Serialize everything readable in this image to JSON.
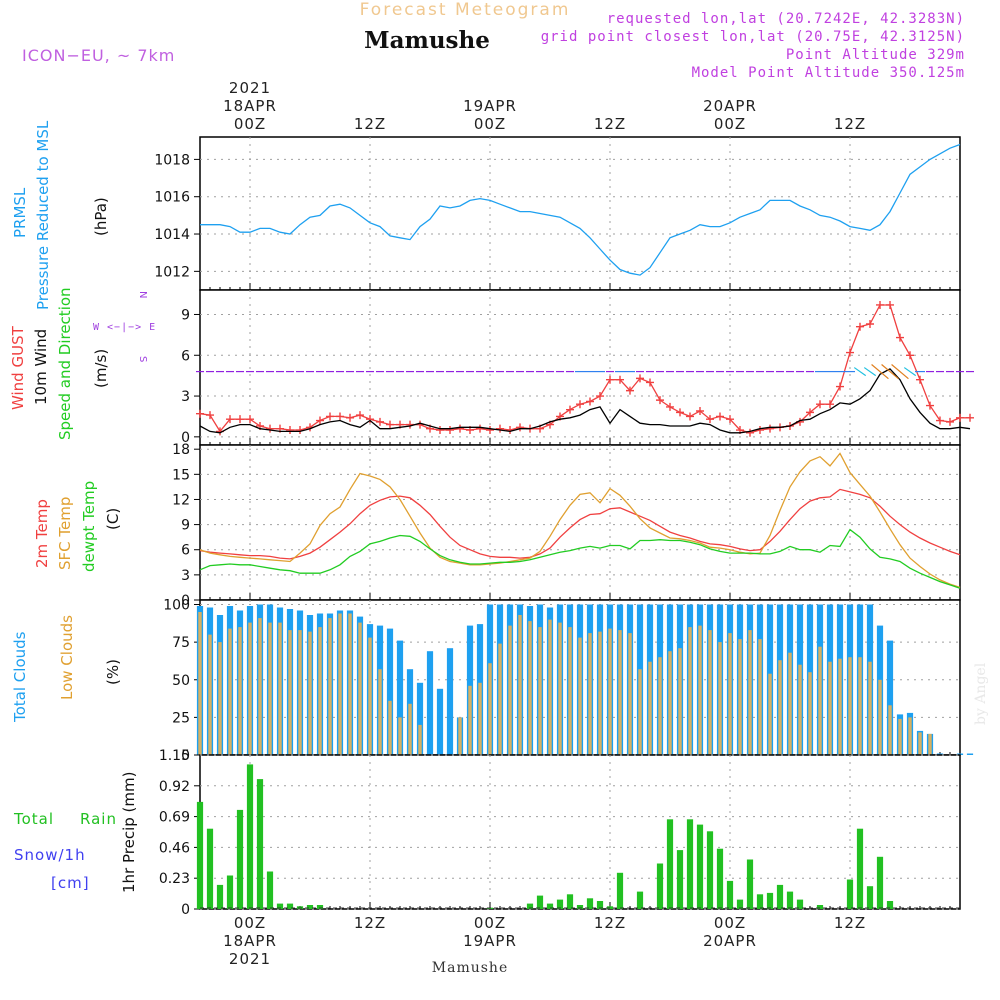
{
  "header": {
    "product_title": "Forecast Meteogram",
    "location_name": "Mamushe",
    "model": "ICON−EU, ~ 7km",
    "requested": "requested lon,lat (20.7242E, 42.3283N)",
    "grid_point": "grid point closest lon,lat (20.75E, 42.3125N)",
    "point_altitude": "Point Altitude 329m",
    "model_altitude": "Model Point Altitude 350.125m",
    "watermark": "by Angel",
    "footer_location": "Mamushe"
  },
  "colors": {
    "pressure": "#1ea0f0",
    "gust": "#f04040",
    "wind": "#000000",
    "direction": "#22cc22",
    "compass": "#a040e0",
    "temp2m": "#f04040",
    "sfc": "#e0a030",
    "dewpt": "#22cc22",
    "total_clouds": "#1ea0f0",
    "low_clouds": "#d8b060",
    "rain": "#22c022",
    "snow": "#4040f0",
    "header_gold": "#f0c890",
    "header_purple": "#c040e0"
  },
  "time_axis": {
    "top_labels": [
      {
        "hour": 0,
        "lines": [
          "2021",
          "18APR",
          "00Z"
        ]
      },
      {
        "hour": 12,
        "lines": [
          "12Z"
        ]
      },
      {
        "hour": 24,
        "lines": [
          "19APR",
          "00Z"
        ]
      },
      {
        "hour": 36,
        "lines": [
          "12Z"
        ]
      },
      {
        "hour": 48,
        "lines": [
          "20APR",
          "00Z"
        ]
      },
      {
        "hour": 60,
        "lines": [
          "12Z"
        ]
      }
    ],
    "bottom_labels": [
      {
        "hour": 0,
        "lines": [
          "00Z",
          "18APR",
          "2021"
        ]
      },
      {
        "hour": 12,
        "lines": [
          "12Z"
        ]
      },
      {
        "hour": 24,
        "lines": [
          "00Z",
          "19APR"
        ]
      },
      {
        "hour": 36,
        "lines": [
          "12Z"
        ]
      },
      {
        "hour": 48,
        "lines": [
          "00Z",
          "20APR"
        ]
      },
      {
        "hour": 60,
        "lines": [
          "12Z"
        ]
      }
    ],
    "start_hour": -5,
    "end_hour": 71
  },
  "chart_data": [
    {
      "type": "line",
      "id": "pressure",
      "title": "PRMSL Pressure Reduced to MSL",
      "label_lines": [
        "PRMSL",
        "Pressure Reduced to MSL"
      ],
      "ylabel": "(hPa)",
      "ylim": [
        1011,
        1019.2
      ],
      "yticks": [
        1012,
        1014,
        1016,
        1018
      ],
      "x_start": -5,
      "x_step": 1,
      "series": [
        {
          "name": "PRMSL",
          "color_key": "pressure",
          "values": [
            1014.5,
            1014.5,
            1014.5,
            1014.4,
            1014.1,
            1014.1,
            1014.3,
            1014.3,
            1014.1,
            1014.0,
            1014.5,
            1014.9,
            1015.0,
            1015.5,
            1015.6,
            1015.4,
            1015.0,
            1014.6,
            1014.4,
            1013.9,
            1013.8,
            1013.7,
            1014.4,
            1014.8,
            1015.5,
            1015.4,
            1015.5,
            1015.8,
            1015.9,
            1015.8,
            1015.6,
            1015.4,
            1015.2,
            1015.2,
            1015.1,
            1015.0,
            1014.9,
            1014.6,
            1014.3,
            1013.8,
            1013.2,
            1012.6,
            1012.1,
            1011.9,
            1011.8,
            1012.2,
            1013.0,
            1013.8,
            1014.0,
            1014.2,
            1014.5,
            1014.4,
            1014.4,
            1014.6,
            1014.9,
            1015.1,
            1015.3,
            1015.8,
            1015.8,
            1015.8,
            1015.5,
            1015.3,
            1015.0,
            1014.9,
            1014.7,
            1014.4,
            1014.3,
            1014.2,
            1014.5,
            1015.2,
            1016.2,
            1017.2,
            1017.6,
            1018.0,
            1018.3,
            1018.6,
            1018.8
          ]
        }
      ]
    },
    {
      "type": "line",
      "id": "wind",
      "title": "Wind GUST, 10m Wind Speed and Direction",
      "label_gust": "Wind GUST",
      "label_wind": "10m Wind",
      "label_dir": "Speed and Direction",
      "ylabel": "(m/s)",
      "compass": [
        "N",
        "W <−|−> E",
        "S"
      ],
      "ylim": [
        -0.6,
        10.8
      ],
      "yticks": [
        0,
        3,
        6,
        9
      ],
      "x_start": -5,
      "x_step": 1,
      "series": [
        {
          "name": "Wind GUST",
          "color_key": "gust",
          "markers": "plus",
          "values": [
            1.7,
            1.6,
            0.4,
            1.3,
            1.3,
            1.3,
            0.8,
            0.6,
            0.6,
            0.5,
            0.5,
            0.7,
            1.2,
            1.5,
            1.5,
            1.4,
            1.6,
            1.3,
            1.1,
            0.9,
            0.9,
            0.9,
            0.9,
            0.6,
            0.5,
            0.5,
            0.6,
            0.5,
            0.6,
            0.5,
            0.6,
            0.5,
            0.7,
            0.6,
            0.6,
            0.9,
            1.5,
            2.0,
            2.4,
            2.6,
            3.0,
            4.2,
            4.2,
            3.4,
            4.3,
            4.0,
            2.7,
            2.2,
            1.8,
            1.5,
            1.9,
            1.3,
            1.5,
            1.3,
            0.5,
            0.3,
            0.5,
            0.6,
            0.7,
            0.8,
            1.1,
            1.8,
            2.4,
            2.4,
            3.7,
            6.2,
            8.1,
            8.3,
            9.7,
            9.7,
            7.3,
            6.0,
            4.2,
            2.3,
            1.2,
            1.1,
            1.4,
            1.4
          ]
        },
        {
          "name": "10m Wind",
          "color_key": "wind",
          "values": [
            0.8,
            0.4,
            0.3,
            0.7,
            0.9,
            0.9,
            0.6,
            0.5,
            0.4,
            0.4,
            0.4,
            0.6,
            0.9,
            1.1,
            1.2,
            0.9,
            0.7,
            1.2,
            0.6,
            0.6,
            0.7,
            0.8,
            1.0,
            0.8,
            0.6,
            0.6,
            0.7,
            0.7,
            0.7,
            0.6,
            0.5,
            0.4,
            0.6,
            0.6,
            0.8,
            1.1,
            1.3,
            1.4,
            1.6,
            2.0,
            2.2,
            1.0,
            2.0,
            1.5,
            1.0,
            0.9,
            0.9,
            0.8,
            0.8,
            0.8,
            1.0,
            0.9,
            0.5,
            0.3,
            0.3,
            0.4,
            0.6,
            0.7,
            0.7,
            0.8,
            1.2,
            1.3,
            1.7,
            2.0,
            2.5,
            2.4,
            2.8,
            3.4,
            4.6,
            5.0,
            4.2,
            2.8,
            1.8,
            1.0,
            0.6,
            0.6,
            0.7,
            0.6
          ]
        }
      ]
    },
    {
      "type": "line",
      "id": "temperature",
      "title": "2m Temp, SFC Temp, dewpt Temp",
      "label_lines": [
        "2m Temp",
        "SFC Temp",
        "dewpt Temp"
      ],
      "ylabel": "(C)",
      "ylim": [
        0,
        18.5
      ],
      "yticks": [
        0,
        3,
        6,
        9,
        12,
        15,
        18
      ],
      "x_start": -5,
      "x_step": 1,
      "series": [
        {
          "name": "2m Temp",
          "color_key": "temp2m",
          "values": [
            5.9,
            5.7,
            5.6,
            5.5,
            5.4,
            5.3,
            5.3,
            5.2,
            5.0,
            4.9,
            5.2,
            5.6,
            6.3,
            7.2,
            8.1,
            9.1,
            10.3,
            11.3,
            11.9,
            12.3,
            12.4,
            12.2,
            11.3,
            10.2,
            8.8,
            7.5,
            6.5,
            6.0,
            5.5,
            5.2,
            5.1,
            5.1,
            5.0,
            5.1,
            5.5,
            6.2,
            7.5,
            8.6,
            9.6,
            10.2,
            10.3,
            10.9,
            11.0,
            10.5,
            10.0,
            9.5,
            8.8,
            8.1,
            7.7,
            7.4,
            7.0,
            6.7,
            6.6,
            6.4,
            6.1,
            5.9,
            6.0,
            7.0,
            8.2,
            9.6,
            10.9,
            11.8,
            12.2,
            12.3,
            13.2,
            12.9,
            12.6,
            12.2,
            11.2,
            10.0,
            9.0,
            8.1,
            7.4,
            6.8,
            6.3,
            5.8,
            5.4
          ]
        },
        {
          "name": "SFC Temp",
          "color_key": "sfc",
          "values": [
            6.0,
            5.6,
            5.4,
            5.2,
            5.1,
            5.0,
            4.9,
            4.8,
            4.7,
            4.6,
            5.6,
            6.7,
            8.9,
            10.3,
            11.1,
            13.2,
            15.1,
            14.8,
            14.4,
            13.5,
            12.0,
            10.0,
            8.0,
            6.2,
            5.1,
            4.6,
            4.4,
            4.2,
            4.2,
            4.3,
            4.4,
            4.6,
            4.8,
            5.0,
            5.8,
            7.6,
            9.6,
            11.3,
            12.6,
            12.8,
            11.6,
            13.3,
            12.5,
            11.2,
            9.7,
            8.6,
            8.0,
            7.4,
            7.3,
            7.1,
            6.8,
            6.3,
            6.2,
            6.0,
            5.7,
            5.5,
            5.6,
            7.7,
            10.7,
            13.5,
            15.3,
            16.6,
            17.1,
            16.0,
            17.5,
            15.2,
            13.8,
            12.4,
            10.5,
            8.5,
            6.6,
            5.0,
            4.0,
            3.1,
            2.4,
            1.9,
            1.5
          ]
        },
        {
          "name": "dewpt Temp",
          "color_key": "dewpt",
          "values": [
            3.6,
            4.1,
            4.2,
            4.3,
            4.2,
            4.2,
            4.0,
            3.8,
            3.6,
            3.5,
            3.2,
            3.2,
            3.2,
            3.6,
            4.2,
            5.2,
            5.8,
            6.7,
            7.0,
            7.4,
            7.7,
            7.6,
            7.0,
            6.1,
            5.3,
            4.8,
            4.5,
            4.3,
            4.3,
            4.4,
            4.5,
            4.5,
            4.6,
            4.8,
            5.1,
            5.4,
            5.7,
            5.9,
            6.2,
            6.4,
            6.2,
            6.5,
            6.5,
            6.1,
            7.1,
            7.1,
            7.2,
            7.1,
            7.1,
            6.9,
            6.6,
            6.1,
            5.8,
            5.6,
            5.6,
            5.6,
            5.5,
            5.5,
            5.8,
            6.4,
            6.0,
            6.0,
            5.7,
            6.5,
            6.4,
            8.4,
            7.5,
            6.1,
            5.1,
            4.9,
            4.6,
            3.8,
            3.2,
            2.7,
            2.2,
            1.8,
            1.4
          ]
        }
      ]
    },
    {
      "type": "bar",
      "id": "clouds",
      "title": "Total Clouds, Low Clouds",
      "label_lines": [
        "Total Clouds",
        "Low Clouds"
      ],
      "ylabel": "(%)",
      "ylim": [
        0,
        103
      ],
      "yticks": [
        0,
        25,
        50,
        75,
        100
      ],
      "x_start": -5,
      "x_step": 1,
      "series": [
        {
          "name": "Total Clouds",
          "color_key": "total_clouds",
          "values": [
            99,
            98,
            93,
            99,
            96,
            99,
            100,
            100,
            98,
            97,
            96,
            93,
            94,
            94,
            96,
            96,
            92,
            87,
            86,
            84,
            76,
            57,
            48,
            69,
            44,
            71,
            25,
            86,
            87,
            100,
            100,
            100,
            100,
            99,
            100,
            98,
            100,
            100,
            100,
            100,
            100,
            100,
            100,
            100,
            100,
            100,
            100,
            100,
            100,
            100,
            100,
            100,
            100,
            100,
            100,
            100,
            100,
            100,
            100,
            100,
            100,
            100,
            100,
            100,
            100,
            100,
            100,
            100,
            86,
            76,
            27,
            28,
            16,
            14,
            1,
            0,
            1,
            1
          ]
        },
        {
          "name": "Low Clouds",
          "color_key": "low_clouds",
          "values": [
            95,
            80,
            75,
            84,
            85,
            88,
            91,
            88,
            88,
            83,
            83,
            82,
            85,
            91,
            94,
            94,
            88,
            78,
            57,
            36,
            25,
            34,
            20,
            0,
            0,
            0,
            25,
            46,
            48,
            61,
            74,
            86,
            93,
            89,
            85,
            90,
            88,
            85,
            78,
            81,
            82,
            84,
            83,
            81,
            57,
            62,
            65,
            69,
            71,
            85,
            86,
            83,
            75,
            81,
            77,
            83,
            77,
            54,
            63,
            68,
            60,
            55,
            72,
            62,
            64,
            65,
            65,
            62,
            50,
            33,
            24,
            25,
            15,
            14,
            0,
            0,
            0,
            0
          ]
        }
      ]
    },
    {
      "type": "bar",
      "id": "precip",
      "title": "1hr Precip (mm)",
      "label_total": "Total",
      "label_rain": "Rain",
      "label_snow": "Snow/1h",
      "label_cm": "[cm]",
      "ylabel": "1hr Precip (mm)",
      "ylim": [
        0,
        1.15
      ],
      "yticks": [
        0,
        0.23,
        0.46,
        0.69,
        0.92,
        1.15
      ],
      "ytick_labels": [
        "0",
        "0.23",
        "0.46",
        "0.69",
        "0.92",
        "1.15"
      ],
      "x_start": -5,
      "x_step": 1,
      "series": [
        {
          "name": "Total Rain",
          "color_key": "rain",
          "values": [
            0.8,
            0.6,
            0.18,
            0.25,
            0.74,
            1.08,
            0.97,
            0.28,
            0.04,
            0.04,
            0.02,
            0.03,
            0.03,
            0.0,
            0.0,
            0.0,
            0.0,
            0.0,
            0.0,
            0.0,
            0.0,
            0.0,
            0.0,
            0.0,
            0.0,
            0.0,
            0.0,
            0.0,
            0.0,
            0.01,
            0.0,
            0.0,
            0.0,
            0.04,
            0.1,
            0.04,
            0.07,
            0.11,
            0.03,
            0.08,
            0.06,
            0.02,
            0.27,
            0.0,
            0.13,
            0.0,
            0.34,
            0.67,
            0.44,
            0.67,
            0.63,
            0.58,
            0.45,
            0.21,
            0.07,
            0.37,
            0.11,
            0.12,
            0.18,
            0.13,
            0.07,
            0.0,
            0.03,
            0.0,
            0.0,
            0.22,
            0.6,
            0.17,
            0.39,
            0.06,
            0.0,
            0.0,
            0.0,
            0.0,
            0.0,
            0.0,
            0.0,
            0.0
          ]
        }
      ]
    }
  ]
}
